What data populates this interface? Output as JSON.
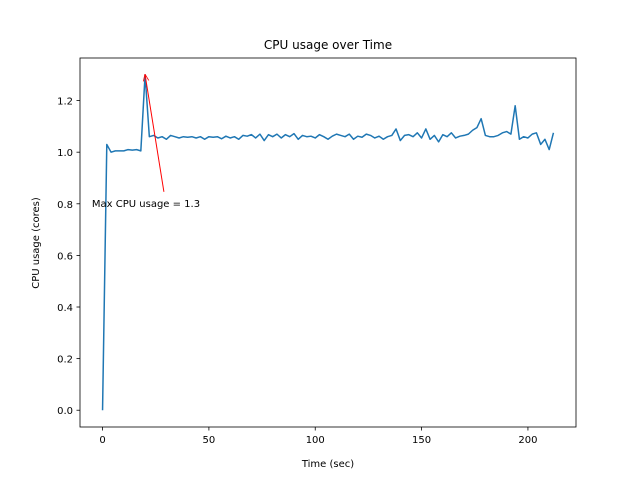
{
  "chart_data": {
    "type": "line",
    "title": "CPU usage over Time",
    "xlabel": "Time (sec)",
    "ylabel": "CPU usage (cores)",
    "x": [
      0,
      2,
      4,
      6,
      8,
      10,
      12,
      14,
      16,
      18,
      20,
      22,
      24,
      26,
      28,
      30,
      32,
      34,
      36,
      38,
      40,
      42,
      44,
      46,
      48,
      50,
      52,
      54,
      56,
      58,
      60,
      62,
      64,
      66,
      68,
      70,
      72,
      74,
      76,
      78,
      80,
      82,
      84,
      86,
      88,
      90,
      92,
      94,
      96,
      98,
      100,
      102,
      104,
      106,
      108,
      110,
      112,
      114,
      116,
      118,
      120,
      122,
      124,
      126,
      128,
      130,
      132,
      134,
      136,
      138,
      140,
      142,
      144,
      146,
      148,
      150,
      152,
      154,
      156,
      158,
      160,
      162,
      164,
      166,
      168,
      170,
      172,
      174,
      176,
      178,
      180,
      182,
      184,
      186,
      188,
      190,
      192,
      194,
      196,
      198,
      200,
      202,
      204,
      206,
      208,
      210,
      212
    ],
    "series": [
      {
        "name": "CPU usage",
        "color": "#1f77b4",
        "values": [
          0.0,
          1.03,
          1.0,
          1.005,
          1.005,
          1.005,
          1.01,
          1.008,
          1.01,
          1.005,
          1.3,
          1.06,
          1.065,
          1.055,
          1.06,
          1.05,
          1.065,
          1.06,
          1.055,
          1.06,
          1.058,
          1.06,
          1.055,
          1.06,
          1.05,
          1.06,
          1.058,
          1.06,
          1.052,
          1.062,
          1.055,
          1.06,
          1.05,
          1.065,
          1.062,
          1.068,
          1.055,
          1.07,
          1.045,
          1.068,
          1.06,
          1.07,
          1.055,
          1.068,
          1.06,
          1.072,
          1.05,
          1.065,
          1.06,
          1.062,
          1.055,
          1.068,
          1.06,
          1.05,
          1.062,
          1.07,
          1.065,
          1.06,
          1.07,
          1.05,
          1.062,
          1.058,
          1.07,
          1.065,
          1.055,
          1.062,
          1.05,
          1.06,
          1.065,
          1.09,
          1.045,
          1.065,
          1.068,
          1.06,
          1.075,
          1.055,
          1.09,
          1.05,
          1.065,
          1.04,
          1.068,
          1.06,
          1.075,
          1.055,
          1.062,
          1.065,
          1.07,
          1.085,
          1.095,
          1.13,
          1.065,
          1.06,
          1.06,
          1.065,
          1.075,
          1.08,
          1.07,
          1.18,
          1.05,
          1.06,
          1.055,
          1.07,
          1.075,
          1.03,
          1.05,
          1.01,
          1.075
        ]
      }
    ],
    "xlim": [
      -10.6,
      222.6
    ],
    "xticks": [
      0,
      50,
      100,
      150,
      200
    ],
    "ylim": [
      -0.065,
      1.365
    ],
    "yticks": [
      {
        "value": 0,
        "label": "0.0"
      },
      0.2,
      0.4,
      0.6,
      0.8,
      {
        "value": 1,
        "label": "1.0"
      },
      1.2
    ],
    "grid": false,
    "annotation": {
      "text": "Max CPU usage = 1.3",
      "xy": [
        20,
        1.3
      ],
      "xytext": [
        -5,
        0.8
      ],
      "color": "red"
    }
  }
}
